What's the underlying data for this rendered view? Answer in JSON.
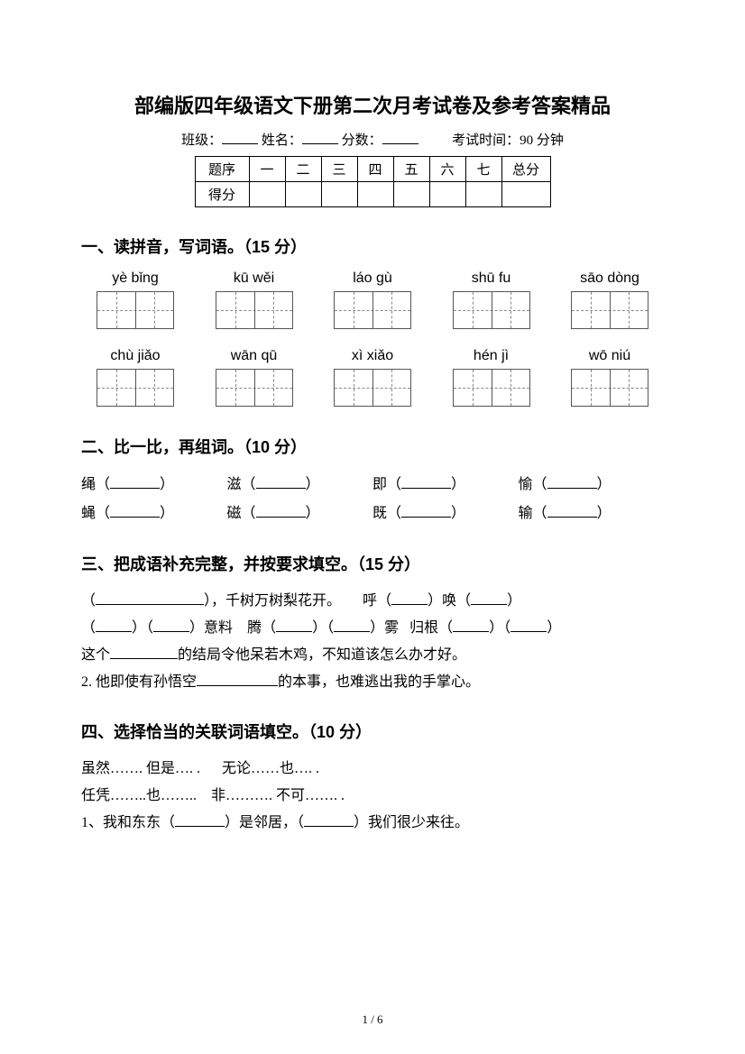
{
  "title": "部编版四年级语文下册第二次月考试卷及参考答案精品",
  "info": {
    "class_label": "班级：",
    "name_label": "姓名：",
    "score_label": "分数：",
    "time_label": "考试时间：90 分钟"
  },
  "score_table": {
    "row1_label": "题序",
    "cols": [
      "一",
      "二",
      "三",
      "四",
      "五",
      "六",
      "七"
    ],
    "total": "总分",
    "row2_label": "得分"
  },
  "q1": {
    "heading": "一、读拼音，写词语。（15 分）",
    "row1": [
      "yè bǐng",
      "kū wěi",
      "láo gù",
      "shū fu",
      "sāo dòng"
    ],
    "row2": [
      "chù jiǎo",
      "wān qū",
      "xì xiǎo",
      "hén jì",
      "wō niú"
    ]
  },
  "q2": {
    "heading": "二、比一比，再组词。（10 分）",
    "pairs": [
      [
        "绳",
        "滋",
        "即",
        "愉"
      ],
      [
        "蝇",
        "磁",
        "既",
        "输"
      ]
    ]
  },
  "q3": {
    "heading": "三、把成语补充完整，并按要求填空。（15 分）",
    "line1_b": "，千树万树梨花开。",
    "line1_c1": "呼",
    "line1_c2": "唤",
    "line2_a": "意料",
    "line2_b1": "腾",
    "line2_b3": "雾",
    "line2_c1": "归根",
    "line3_a": "这个",
    "line3_b": "的结局令他呆若木鸡，不知道该怎么办才好。",
    "line4_a": "2. 他即使有孙悟空",
    "line4_b": "的本事，也难逃出我的手掌心。"
  },
  "q4": {
    "heading": "四、选择恰当的关联词语填空。（10 分）",
    "opt1": "虽然……. 但是…. .",
    "opt2": "无论……也…. .",
    "opt3": "任凭……..也……..",
    "opt4": "非………. 不可……. .",
    "line_a": "1、我和东东（",
    "line_b": "）是邻居，（",
    "line_c": "）我们很少来往。"
  },
  "page_num": "1 / 6"
}
